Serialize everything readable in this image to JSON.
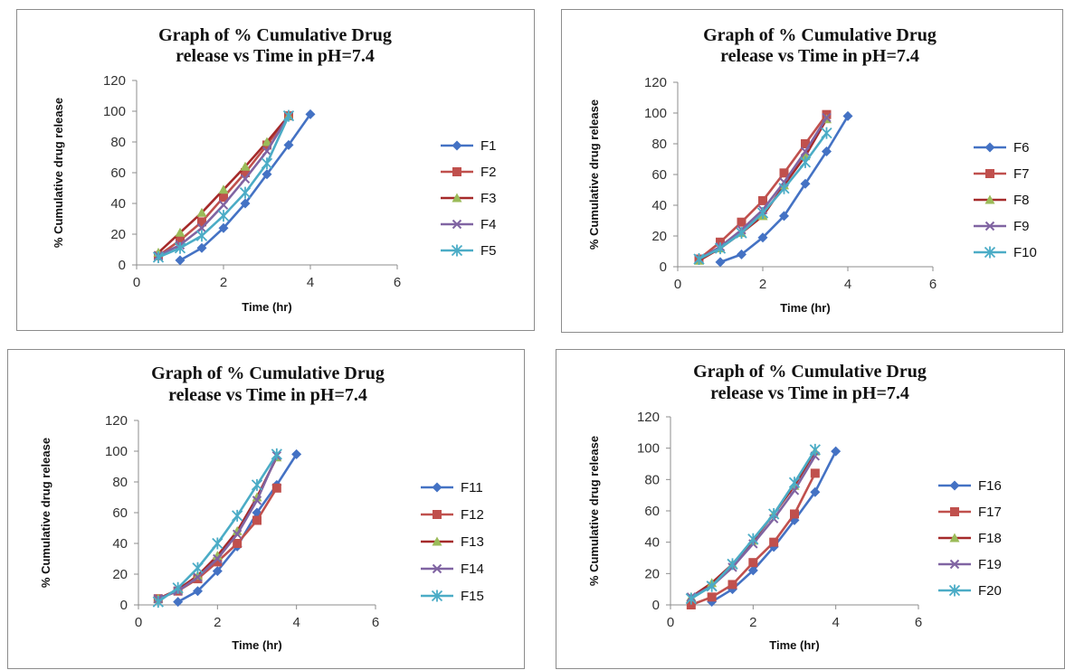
{
  "colors": {
    "series": [
      "#4472c4",
      "#c0504d",
      "#9bbb59",
      "#8064a2",
      "#4bacc6"
    ],
    "line3": "#a52a2a",
    "axis": "#8c8c8c"
  },
  "chart_data": [
    {
      "type": "line",
      "title": "Graph of % Cumulative Drug release vs Time in pH=7.4",
      "title_lines": [
        "Graph of % Cumulative Drug",
        "release vs Time in pH=7.4"
      ],
      "xlabel": "Time (hr)",
      "ylabel": "% Cumulative drug release",
      "xlim": [
        0,
        6
      ],
      "ylim": [
        0,
        120
      ],
      "xticks": [
        0,
        2,
        4,
        6
      ],
      "yticks": [
        0,
        20,
        40,
        60,
        80,
        100,
        120
      ],
      "grid": false,
      "legend": "right",
      "series": [
        {
          "name": "F1",
          "marker": "diamond",
          "points": [
            [
              1,
              3
            ],
            [
              1.5,
              11
            ],
            [
              2,
              24
            ],
            [
              2.5,
              40
            ],
            [
              3,
              59
            ],
            [
              3.5,
              78
            ],
            [
              4,
              98
            ]
          ]
        },
        {
          "name": "F2",
          "marker": "square",
          "points": [
            [
              0.5,
              6
            ],
            [
              1,
              16
            ],
            [
              1.5,
              28
            ],
            [
              2,
              44
            ],
            [
              2.5,
              60
            ],
            [
              3,
              78
            ],
            [
              3.5,
              97
            ]
          ]
        },
        {
          "name": "F3",
          "marker": "triangle",
          "points": [
            [
              0.5,
              8
            ],
            [
              1,
              21
            ],
            [
              1.5,
              34
            ],
            [
              2,
              49
            ],
            [
              2.5,
              64
            ],
            [
              3,
              80
            ],
            [
              3.5,
              97
            ]
          ]
        },
        {
          "name": "F4",
          "marker": "x",
          "points": [
            [
              0.5,
              6
            ],
            [
              1,
              13
            ],
            [
              1.5,
              24
            ],
            [
              2,
              39
            ],
            [
              2.5,
              56
            ],
            [
              3,
              74
            ],
            [
              3.5,
              97
            ]
          ]
        },
        {
          "name": "F5",
          "marker": "star",
          "points": [
            [
              0.5,
              5
            ],
            [
              1,
              11
            ],
            [
              1.5,
              19
            ],
            [
              2,
              32
            ],
            [
              2.5,
              47
            ],
            [
              3,
              66
            ],
            [
              3.5,
              97
            ]
          ]
        }
      ]
    },
    {
      "type": "line",
      "title": "Graph of % Cumulative Drug release vs Time in pH=7.4",
      "title_lines": [
        "Graph of % Cumulative Drug",
        "release vs Time in pH=7.4"
      ],
      "xlabel": "Time (hr)",
      "ylabel": "% Cumulative drug release",
      "xlim": [
        0,
        6
      ],
      "ylim": [
        0,
        120
      ],
      "xticks": [
        0,
        2,
        4,
        6
      ],
      "yticks": [
        0,
        20,
        40,
        60,
        80,
        100,
        120
      ],
      "grid": false,
      "legend": "right",
      "series": [
        {
          "name": "F6",
          "marker": "diamond",
          "points": [
            [
              1,
              3
            ],
            [
              1.5,
              8
            ],
            [
              2,
              19
            ],
            [
              2.5,
              33
            ],
            [
              3,
              54
            ],
            [
              3.5,
              75
            ],
            [
              4,
              98
            ]
          ]
        },
        {
          "name": "F7",
          "marker": "square",
          "points": [
            [
              0.5,
              5
            ],
            [
              1,
              16
            ],
            [
              1.5,
              29
            ],
            [
              2,
              43
            ],
            [
              2.5,
              61
            ],
            [
              3,
              80
            ],
            [
              3.5,
              99
            ]
          ]
        },
        {
          "name": "F8",
          "marker": "triangle",
          "points": [
            [
              0.5,
              4
            ],
            [
              1,
              12
            ],
            [
              1.5,
              22
            ],
            [
              2,
              33
            ],
            [
              2.5,
              53
            ],
            [
              3,
              72
            ],
            [
              3.5,
              96
            ]
          ]
        },
        {
          "name": "F9",
          "marker": "x",
          "points": [
            [
              0.5,
              5
            ],
            [
              1,
              13
            ],
            [
              1.5,
              24
            ],
            [
              2,
              37
            ],
            [
              2.5,
              55
            ],
            [
              3,
              75
            ],
            [
              3.5,
              97
            ]
          ]
        },
        {
          "name": "F10",
          "marker": "star",
          "points": [
            [
              0.5,
              5
            ],
            [
              1,
              12
            ],
            [
              1.5,
              22
            ],
            [
              2,
              35
            ],
            [
              2.5,
              51
            ],
            [
              3,
              68
            ],
            [
              3.5,
              87
            ]
          ]
        }
      ]
    },
    {
      "type": "line",
      "title": "Graph of % Cumulative Drug release vs Time in pH=7.4",
      "title_lines": [
        "Graph of % Cumulative Drug",
        "release vs Time in pH=7.4"
      ],
      "xlabel": "Time (hr)",
      "ylabel": "% Cumulative drug release",
      "xlim": [
        0,
        6
      ],
      "ylim": [
        0,
        120
      ],
      "xticks": [
        0,
        2,
        4,
        6
      ],
      "yticks": [
        0,
        20,
        40,
        60,
        80,
        100,
        120
      ],
      "grid": false,
      "legend": "right",
      "series": [
        {
          "name": "F11",
          "marker": "diamond",
          "points": [
            [
              1,
              2
            ],
            [
              1.5,
              9
            ],
            [
              2,
              22
            ],
            [
              2.5,
              38
            ],
            [
              3,
              60
            ],
            [
              3.5,
              78
            ],
            [
              4,
              98
            ]
          ]
        },
        {
          "name": "F12",
          "marker": "square",
          "points": [
            [
              0.5,
              4
            ],
            [
              1,
              9
            ],
            [
              1.5,
              17
            ],
            [
              2,
              28
            ],
            [
              2.5,
              40
            ],
            [
              3,
              55
            ],
            [
              3.5,
              76
            ]
          ]
        },
        {
          "name": "F13",
          "marker": "triangle",
          "points": [
            [
              0.5,
              4
            ],
            [
              1,
              10
            ],
            [
              1.5,
              19
            ],
            [
              2,
              32
            ],
            [
              2.5,
              48
            ],
            [
              3,
              70
            ],
            [
              3.5,
              96
            ]
          ]
        },
        {
          "name": "F14",
          "marker": "x",
          "points": [
            [
              0.5,
              4
            ],
            [
              1,
              9
            ],
            [
              1.5,
              18
            ],
            [
              2,
              30
            ],
            [
              2.5,
              46
            ],
            [
              3,
              68
            ],
            [
              3.5,
              97
            ]
          ]
        },
        {
          "name": "F15",
          "marker": "star",
          "points": [
            [
              0.5,
              2
            ],
            [
              1,
              11
            ],
            [
              1.5,
              24
            ],
            [
              2,
              40
            ],
            [
              2.5,
              58
            ],
            [
              3,
              78
            ],
            [
              3.5,
              98
            ]
          ]
        }
      ]
    },
    {
      "type": "line",
      "title": "Graph of % Cumulative Drug release vs Time in pH=7.4",
      "title_lines": [
        "Graph of % Cumulative Drug",
        "release vs Time in pH=7.4"
      ],
      "xlabel": "Time (hr)",
      "ylabel": "% Cumulative drug release",
      "xlim": [
        0,
        6
      ],
      "ylim": [
        0,
        120
      ],
      "xticks": [
        0,
        2,
        4,
        6
      ],
      "yticks": [
        0,
        20,
        40,
        60,
        80,
        100,
        120
      ],
      "grid": false,
      "legend": "right",
      "series": [
        {
          "name": "F16",
          "marker": "diamond",
          "points": [
            [
              1,
              2
            ],
            [
              1.5,
              10
            ],
            [
              2,
              22
            ],
            [
              2.5,
              37
            ],
            [
              3,
              54
            ],
            [
              3.5,
              72
            ],
            [
              4,
              98
            ]
          ]
        },
        {
          "name": "F17",
          "marker": "square",
          "points": [
            [
              0.5,
              0
            ],
            [
              1,
              5
            ],
            [
              1.5,
              13
            ],
            [
              2,
              27
            ],
            [
              2.5,
              40
            ],
            [
              3,
              58
            ],
            [
              3.5,
              84
            ]
          ]
        },
        {
          "name": "F18",
          "marker": "triangle",
          "points": [
            [
              0.5,
              5
            ],
            [
              1,
              14
            ],
            [
              1.5,
              26
            ],
            [
              2,
              41
            ],
            [
              2.5,
              58
            ],
            [
              3,
              76
            ],
            [
              3.5,
              98
            ]
          ]
        },
        {
          "name": "F19",
          "marker": "x",
          "points": [
            [
              0.5,
              5
            ],
            [
              1,
              12
            ],
            [
              1.5,
              24
            ],
            [
              2,
              39
            ],
            [
              2.5,
              55
            ],
            [
              3,
              73
            ],
            [
              3.5,
              95
            ]
          ]
        },
        {
          "name": "F20",
          "marker": "star",
          "points": [
            [
              0.5,
              4
            ],
            [
              1,
              12
            ],
            [
              1.5,
              26
            ],
            [
              2,
              42
            ],
            [
              2.5,
              58
            ],
            [
              3,
              78
            ],
            [
              3.5,
              99
            ]
          ]
        }
      ]
    }
  ]
}
